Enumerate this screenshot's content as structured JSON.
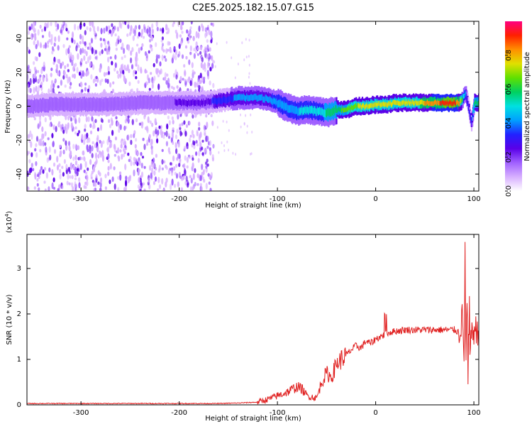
{
  "chart_data": [
    {
      "type": "heatmap",
      "title": "C2E5.2025.182.15.07.G15",
      "xlabel": "Height of straight line (km)",
      "ylabel": "Frequency (Hz)",
      "xlim": [
        -355,
        105
      ],
      "ylim": [
        -50,
        50
      ],
      "x_ticks": [
        "-300",
        "-200",
        "-100",
        "0",
        "100"
      ],
      "y_ticks": [
        "-40",
        "-20",
        "0",
        "20",
        "40"
      ],
      "colorbar": {
        "label": "Normalized spectral amplitude",
        "range": [
          0,
          1
        ],
        "ticks": [
          "0.0",
          "0.2",
          "0.4",
          "0.6",
          "0.8"
        ],
        "colors": [
          "#ffffff",
          "#d8b0ff",
          "#a060ff",
          "#5a00e8",
          "#2222ff",
          "#00a0ff",
          "#00e0e0",
          "#00d060",
          "#60e000",
          "#e0e000",
          "#ff9000",
          "#ff2000",
          "#ff0080"
        ]
      },
      "noise_region_x": [
        -355,
        -165
      ],
      "ridge": {
        "x": [
          -355,
          -330,
          -300,
          -270,
          -240,
          -210,
          -180,
          -165,
          -150,
          -140,
          -130,
          -120,
          -110,
          -100,
          -90,
          -80,
          -70,
          -60,
          -50,
          -40,
          -30,
          -20,
          -10,
          0,
          10,
          20,
          30,
          40,
          50,
          60,
          70,
          80,
          85,
          88,
          91,
          94,
          97,
          100,
          105
        ],
        "freq": [
          0,
          1,
          1,
          1,
          2,
          2,
          2,
          3,
          4,
          5,
          5,
          5,
          4,
          2,
          -1,
          -3,
          -2,
          -3,
          -4,
          -2,
          -2,
          0,
          0,
          1,
          1,
          2,
          2,
          2,
          2,
          2,
          2,
          2,
          2,
          4,
          8,
          0,
          -10,
          2,
          2
        ],
        "amplitude": [
          0.2,
          0.2,
          0.2,
          0.2,
          0.2,
          0.2,
          0.25,
          0.3,
          0.35,
          0.4,
          0.4,
          0.4,
          0.4,
          0.45,
          0.45,
          0.45,
          0.5,
          0.5,
          0.55,
          0.6,
          0.65,
          0.7,
          0.75,
          0.75,
          0.75,
          0.75,
          0.75,
          0.75,
          0.8,
          0.85,
          0.9,
          0.9,
          0.8,
          0.6,
          0.4,
          0.3,
          0.3,
          0.6,
          0.6
        ]
      }
    },
    {
      "type": "line",
      "title": "",
      "xlabel": "Height of straight line (km)",
      "ylabel": "SNR (10 * v/v)",
      "y_multiplier": "(x10",
      "y_multiplier_exp": "4",
      "y_multiplier_close": ")",
      "xlim": [
        -355,
        105
      ],
      "ylim": [
        0,
        3.75
      ],
      "x_ticks": [
        "-300",
        "-200",
        "-100",
        "0",
        "100"
      ],
      "y_ticks": [
        "0",
        "1",
        "2",
        "3"
      ],
      "color": "#e02020",
      "series": [
        {
          "x": [
            -355,
            -300,
            -250,
            -200,
            -180,
            -160,
            -140,
            -120,
            -110,
            -100,
            -90,
            -80,
            -75,
            -70,
            -60,
            -55,
            -50,
            -45,
            -40,
            -35,
            -30,
            -25,
            -20,
            -15,
            -10,
            -5,
            0,
            5,
            10,
            15,
            20,
            30,
            40,
            50,
            60,
            70,
            80,
            85,
            88,
            90,
            91,
            92,
            93,
            94,
            95,
            96,
            97,
            98,
            100,
            105
          ],
          "y": [
            0.03,
            0.03,
            0.03,
            0.03,
            0.03,
            0.03,
            0.04,
            0.06,
            0.12,
            0.2,
            0.28,
            0.4,
            0.35,
            0.2,
            0.15,
            0.5,
            0.7,
            0.6,
            0.9,
            1.0,
            1.1,
            1.2,
            1.3,
            1.25,
            1.4,
            1.35,
            1.45,
            1.5,
            1.55,
            1.6,
            1.62,
            1.65,
            1.65,
            1.65,
            1.65,
            1.65,
            1.65,
            1.6,
            1.9,
            1.2,
            2.4,
            1.0,
            2.2,
            0.8,
            1.8,
            1.3,
            1.6,
            1.5,
            1.65,
            1.65
          ]
        }
      ]
    }
  ]
}
